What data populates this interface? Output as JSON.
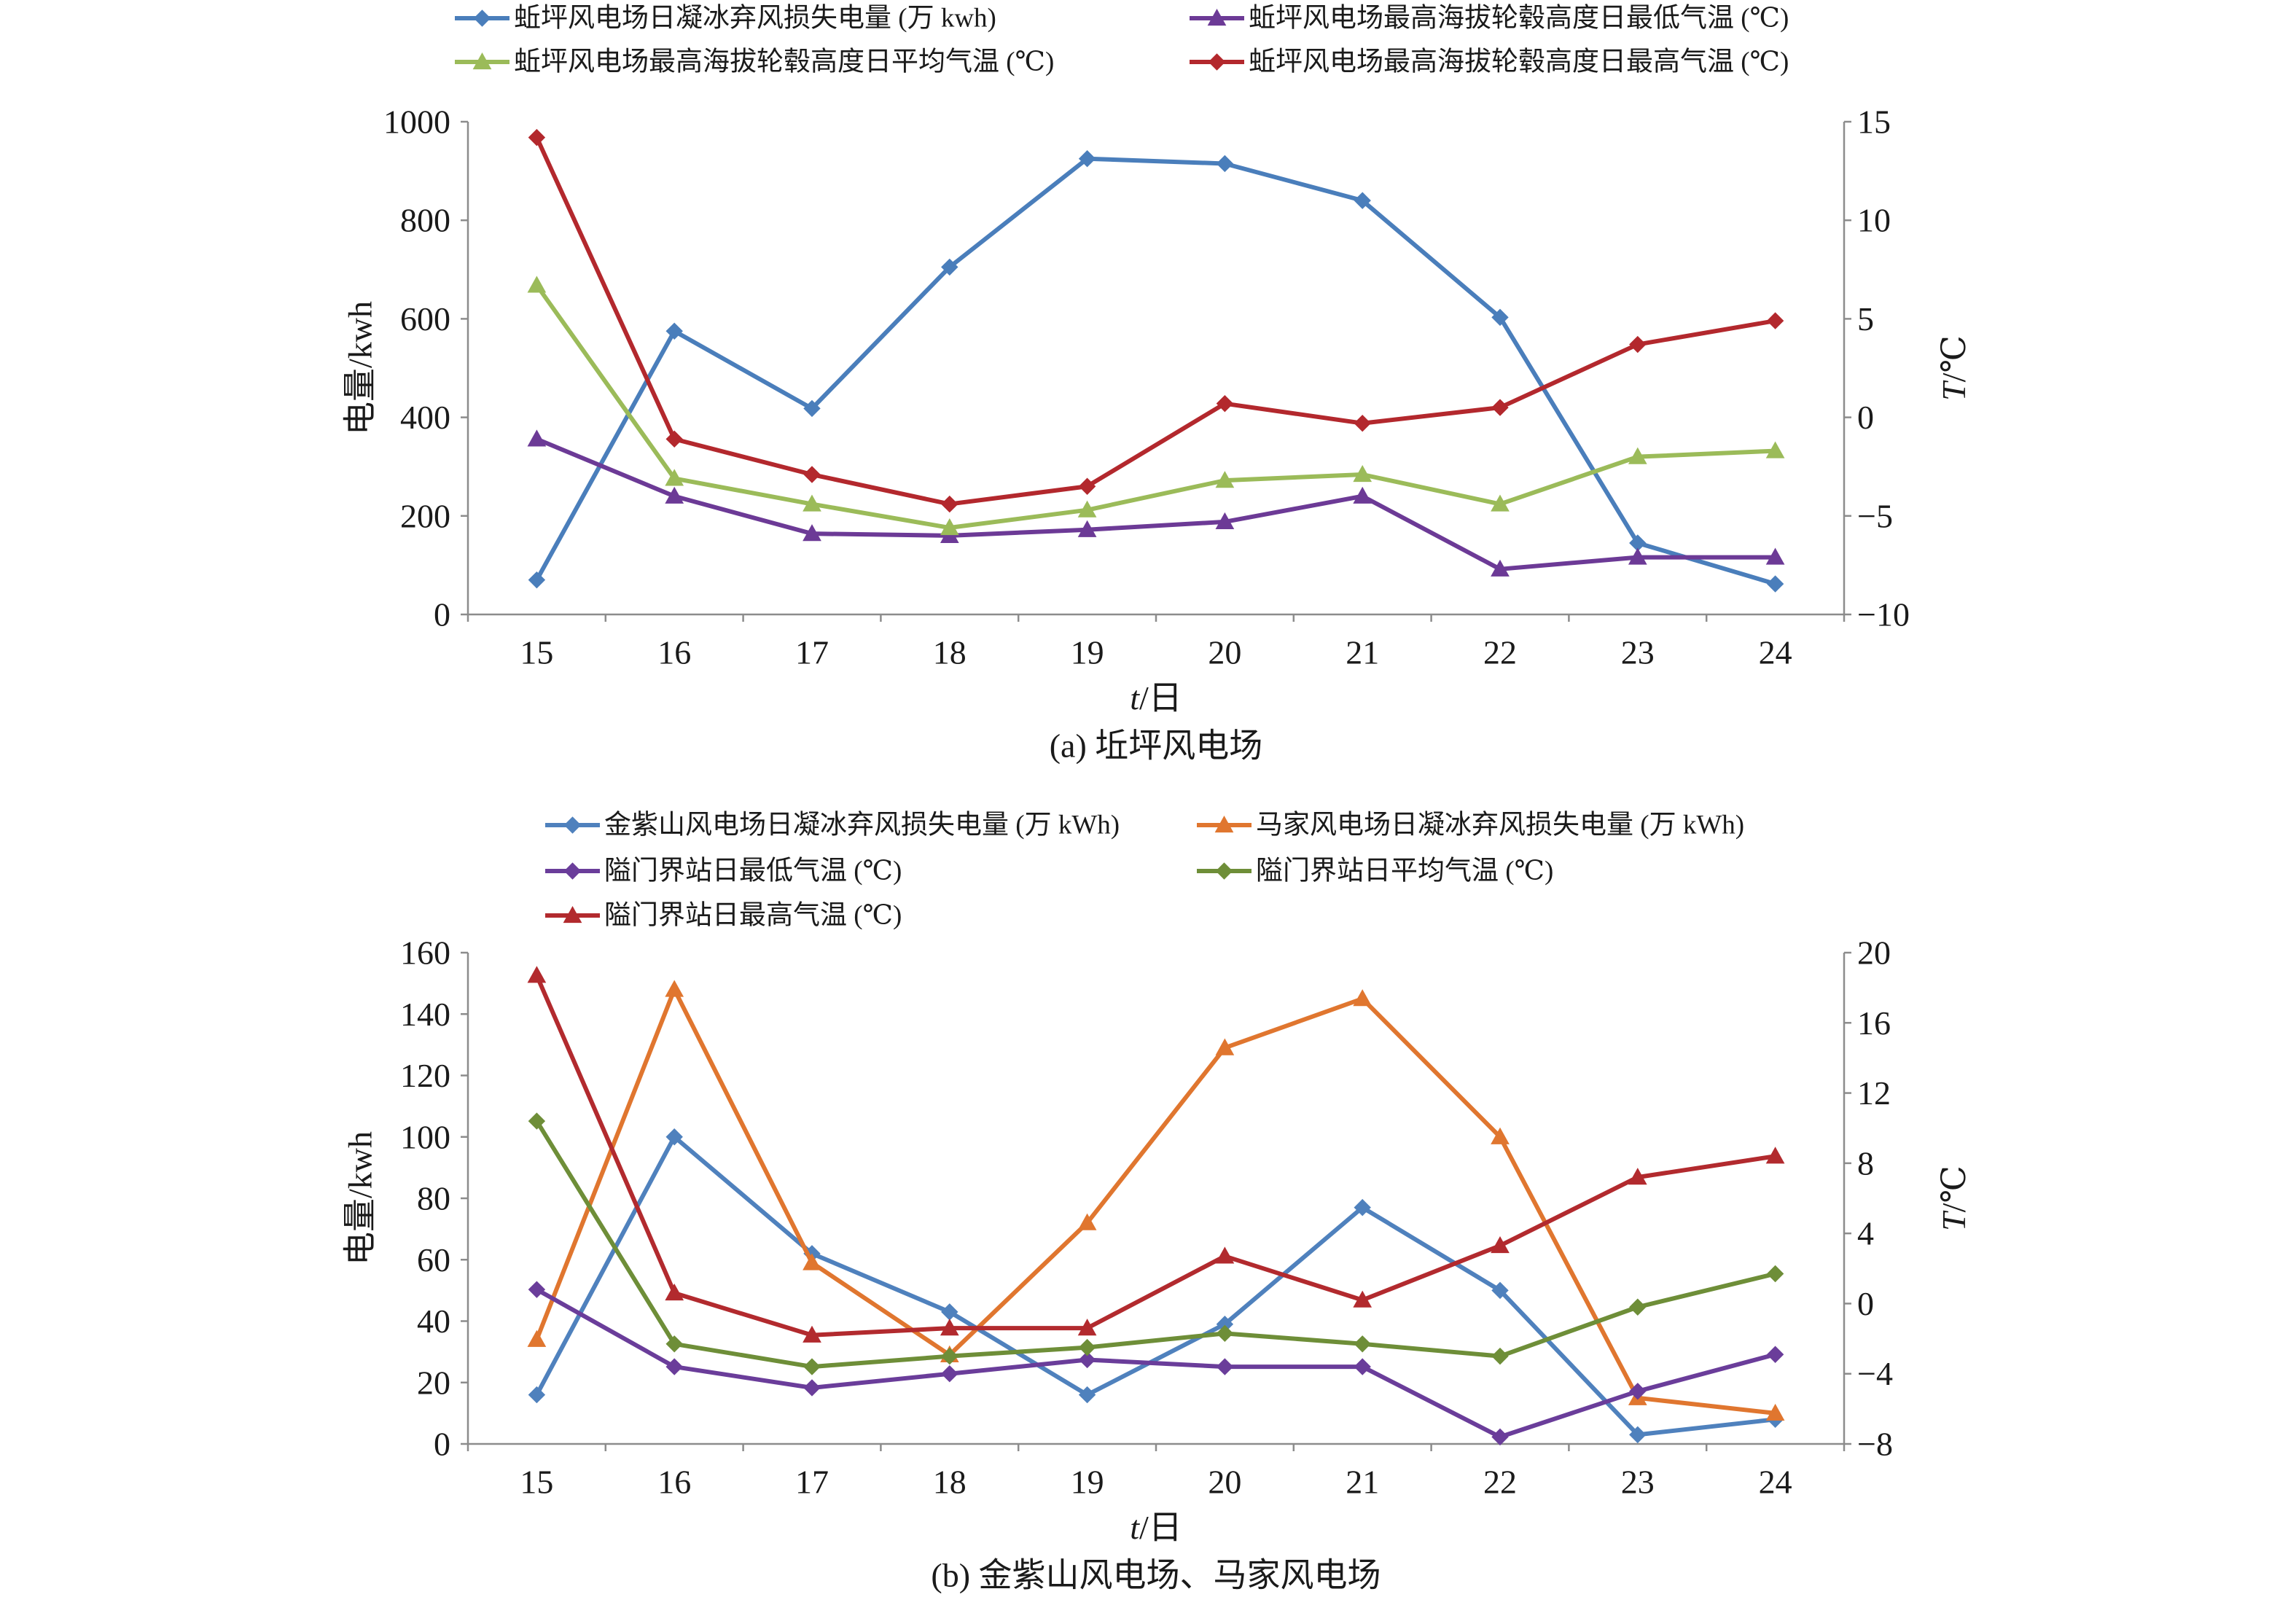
{
  "chart_data": [
    {
      "type": "line",
      "caption": "(a) 坵坪风电场",
      "xlabel": "t/日",
      "categories": [
        15,
        16,
        17,
        18,
        19,
        20,
        21,
        22,
        23,
        24
      ],
      "y_left": {
        "label": "电量/kwh",
        "min": 0,
        "max": 1000,
        "ticks": [
          0,
          200,
          400,
          600,
          800,
          1000
        ]
      },
      "y_right": {
        "label": "T/℃",
        "min": -10,
        "max": 15,
        "ticks": [
          -10,
          -5,
          0,
          5,
          10,
          15
        ]
      },
      "grid": false,
      "legend": {
        "position": "top",
        "columns": 2
      },
      "series": [
        {
          "name": "蚯坪风电场日凝冰弃风损失电量 (万 kwh)",
          "axis": "left",
          "marker": "diamond",
          "color": "#4A7EBB",
          "values": [
            70,
            575,
            418,
            705,
            925,
            915,
            840,
            603,
            145,
            62
          ]
        },
        {
          "name": "蚯坪风电场最高海拔轮毂高度日最低气温 (℃)",
          "axis": "right",
          "marker": "triangle",
          "color": "#6C3A96",
          "values": [
            -1.1,
            -4.0,
            -5.9,
            -6.0,
            -5.7,
            -5.3,
            -4.0,
            -7.7,
            -7.1,
            -7.1
          ]
        },
        {
          "name": "蚯坪风电场最高海拔轮毂高度日平均气温 (℃)",
          "axis": "right",
          "marker": "triangle",
          "color": "#9BBB59",
          "values": [
            6.7,
            -3.1,
            -4.4,
            -5.6,
            -4.7,
            -3.2,
            -2.9,
            -4.4,
            -2.0,
            -1.7
          ]
        },
        {
          "name": "蚯坪风电场最高海拔轮毂高度日最高气温 (℃)",
          "axis": "right",
          "marker": "diamond",
          "color": "#B3282D",
          "values": [
            14.2,
            -1.1,
            -2.9,
            -4.4,
            -3.5,
            0.7,
            -0.3,
            0.5,
            3.7,
            4.9
          ]
        }
      ]
    },
    {
      "type": "line",
      "caption": "(b) 金紫山风电场、马家风电场",
      "xlabel": "t/日",
      "categories": [
        15,
        16,
        17,
        18,
        19,
        20,
        21,
        22,
        23,
        24
      ],
      "y_left": {
        "label": "电量/kwh",
        "min": 0,
        "max": 160,
        "ticks": [
          0,
          20,
          40,
          60,
          80,
          100,
          120,
          140,
          160
        ]
      },
      "y_right": {
        "label": "T/℃",
        "min": -8,
        "max": 20,
        "ticks": [
          -8,
          -4,
          0,
          4,
          8,
          12,
          16,
          20
        ]
      },
      "grid": false,
      "legend": {
        "position": "top",
        "columns": 2
      },
      "series": [
        {
          "name": "金紫山风电场日凝冰弃风损失电量 (万 kWh)",
          "axis": "left",
          "marker": "diamond",
          "color": "#4F81BD",
          "values": [
            16,
            100,
            62,
            43,
            16,
            39,
            77,
            50,
            3,
            8
          ]
        },
        {
          "name": "马家风电场日凝冰弃风损失电量 (万 kWh)",
          "axis": "left",
          "marker": "triangle",
          "color": "#E0762F",
          "values": [
            34,
            148,
            59,
            29,
            72,
            129,
            145,
            100,
            15,
            10
          ]
        },
        {
          "name": "隘门界站日最低气温 (℃)",
          "axis": "right",
          "marker": "diamond",
          "color": "#6A3D9A",
          "values": [
            0.8,
            -3.6,
            -4.8,
            -4.0,
            -3.2,
            -3.6,
            -3.6,
            -7.6,
            -5.0,
            -2.9
          ]
        },
        {
          "name": "隘门界站日平均气温 (℃)",
          "axis": "right",
          "marker": "diamond",
          "color": "#6E8E38",
          "values": [
            10.4,
            -2.3,
            -3.6,
            -3.0,
            -2.5,
            -1.7,
            -2.3,
            -3.0,
            -0.2,
            1.7
          ]
        },
        {
          "name": "隘门界站日最高气温 (℃)",
          "axis": "right",
          "marker": "triangle",
          "color": "#B22A2E",
          "values": [
            18.7,
            0.6,
            -1.8,
            -1.4,
            -1.4,
            2.7,
            0.2,
            3.3,
            7.2,
            8.4
          ]
        }
      ]
    }
  ]
}
